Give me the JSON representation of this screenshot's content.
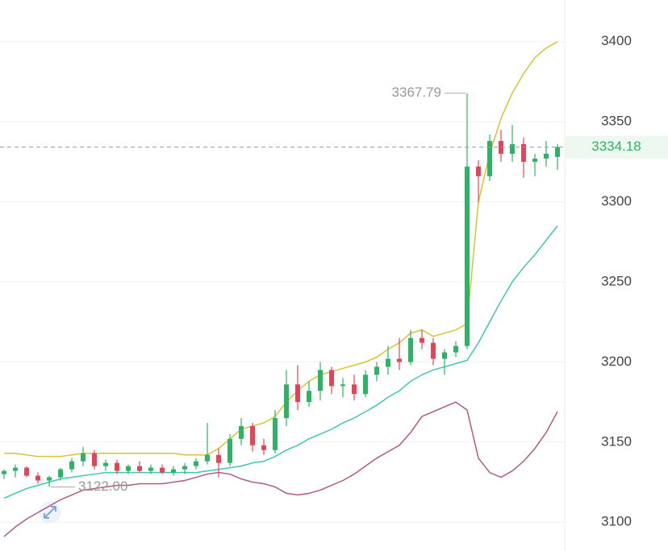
{
  "chart_data": {
    "type": "candlestick",
    "ylim": [
      3082,
      3426
    ],
    "yticks": [
      3100,
      3150,
      3200,
      3250,
      3300,
      3350,
      3400
    ],
    "grid": true,
    "up_color": "#2fb266",
    "down_color": "#e04558",
    "candles": {
      "open": [
        3130,
        3132,
        3134,
        3129,
        3126,
        3128,
        3133,
        3138,
        3143,
        3135,
        3137,
        3132,
        3135,
        3132,
        3134,
        3131,
        3133,
        3135,
        3138,
        3142,
        3137,
        3152,
        3160,
        3148,
        3145,
        3165,
        3186,
        3175,
        3182,
        3195,
        3185,
        3186,
        3180,
        3192,
        3197,
        3202,
        3200,
        3215,
        3212,
        3202,
        3206,
        3210,
        3322,
        3316,
        3338,
        3330,
        3336,
        3325,
        3327,
        3328
      ],
      "high": [
        3133,
        3136,
        3135,
        3131,
        3129,
        3134,
        3140,
        3147,
        3145,
        3139,
        3139,
        3136,
        3138,
        3136,
        3136,
        3135,
        3137,
        3140,
        3162,
        3146,
        3155,
        3165,
        3162,
        3152,
        3170,
        3195,
        3198,
        3188,
        3200,
        3197,
        3190,
        3192,
        3195,
        3200,
        3210,
        3215,
        3220,
        3220,
        3215,
        3208,
        3213,
        3367.79,
        3326,
        3342,
        3345,
        3348,
        3340,
        3330,
        3338,
        3336
      ],
      "low": [
        3127,
        3128,
        3128,
        3124,
        3122,
        3126,
        3131,
        3135,
        3133,
        3132,
        3130,
        3130,
        3131,
        3130,
        3130,
        3129,
        3130,
        3133,
        3136,
        3128,
        3135,
        3148,
        3144,
        3142,
        3143,
        3160,
        3170,
        3172,
        3176,
        3180,
        3178,
        3176,
        3178,
        3188,
        3192,
        3195,
        3198,
        3208,
        3198,
        3192,
        3203,
        3208,
        3300,
        3313,
        3325,
        3325,
        3315,
        3316,
        3322,
        3320
      ],
      "close": [
        3132,
        3134,
        3129,
        3126,
        3128,
        3133,
        3138,
        3143,
        3135,
        3137,
        3132,
        3135,
        3132,
        3134,
        3131,
        3133,
        3135,
        3138,
        3142,
        3137,
        3152,
        3160,
        3148,
        3145,
        3165,
        3186,
        3175,
        3182,
        3195,
        3185,
        3186,
        3180,
        3192,
        3197,
        3202,
        3200,
        3215,
        3212,
        3202,
        3206,
        3210,
        3322,
        3316,
        3338,
        3330,
        3336,
        3325,
        3327,
        3330,
        3334.18
      ]
    },
    "bands": [
      {
        "color": "#d9c233",
        "values": [
          3143,
          3143,
          3142,
          3141,
          3141,
          3141,
          3142,
          3143,
          3143,
          3143,
          3143,
          3143,
          3143,
          3143,
          3143,
          3143,
          3142,
          3142,
          3142,
          3146,
          3152,
          3158,
          3160,
          3162,
          3166,
          3175,
          3182,
          3188,
          3192,
          3194,
          3196,
          3198,
          3200,
          3203,
          3208,
          3212,
          3218,
          3220,
          3216,
          3218,
          3220,
          3224,
          3300,
          3330,
          3352,
          3368,
          3380,
          3390,
          3396,
          3400
        ]
      },
      {
        "color": "#3fc6b4",
        "values": [
          3115,
          3118,
          3121,
          3123,
          3125,
          3127,
          3128,
          3129,
          3130,
          3131,
          3131,
          3131,
          3131,
          3131,
          3131,
          3131,
          3131,
          3131,
          3132,
          3133,
          3134,
          3135,
          3137,
          3138,
          3141,
          3145,
          3148,
          3152,
          3155,
          3158,
          3162,
          3165,
          3169,
          3173,
          3178,
          3182,
          3188,
          3192,
          3195,
          3197,
          3199,
          3201,
          3212,
          3225,
          3238,
          3250,
          3259,
          3267,
          3276,
          3285
        ]
      },
      {
        "color": "#b05a86",
        "values": [
          3091,
          3097,
          3102,
          3106,
          3110,
          3114,
          3117,
          3120,
          3121,
          3122,
          3123,
          3123,
          3124,
          3124,
          3124,
          3125,
          3126,
          3128,
          3130,
          3131,
          3130,
          3127,
          3125,
          3124,
          3122,
          3118,
          3117,
          3118,
          3120,
          3123,
          3126,
          3130,
          3135,
          3140,
          3144,
          3148,
          3156,
          3166,
          3169,
          3172,
          3175,
          3170,
          3140,
          3131,
          3128,
          3132,
          3138,
          3146,
          3156,
          3169
        ]
      }
    ],
    "high_label": "3367.79",
    "low_label": "3122.00",
    "last_label": "3334.18"
  }
}
